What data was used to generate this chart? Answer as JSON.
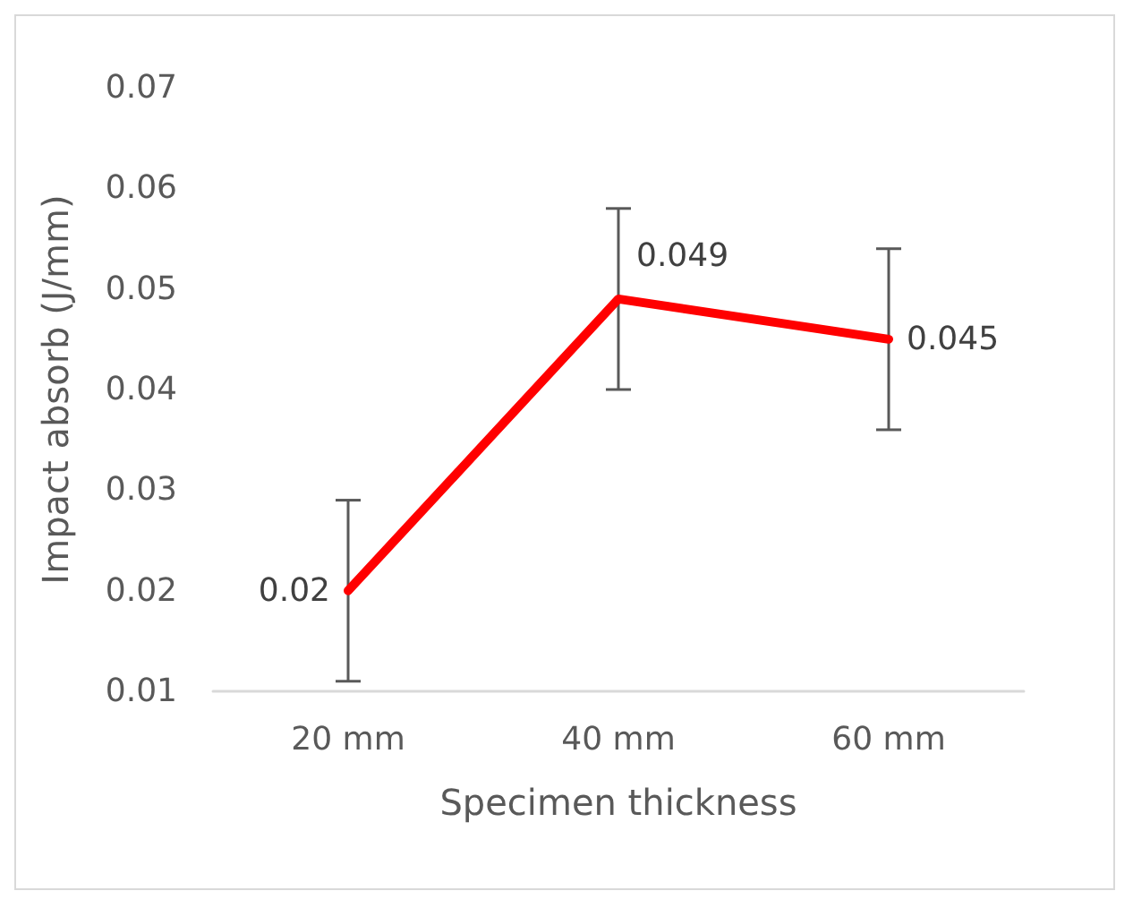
{
  "chart_data": {
    "type": "line",
    "xlabel": "Specimen thickness",
    "ylabel": "Impact absorb (J/mm)",
    "categories": [
      "20 mm",
      "40 mm",
      "60 mm"
    ],
    "series": [
      {
        "color": "#ff0000",
        "values": [
          0.02,
          0.049,
          0.045
        ],
        "errors": [
          0.009,
          0.009,
          0.009
        ]
      }
    ],
    "ylim": [
      0.01,
      0.07
    ],
    "yticks": [
      0.01,
      0.02,
      0.03,
      0.04,
      0.05,
      0.06,
      0.07
    ],
    "data_labels": true,
    "grid": false,
    "marker": "none",
    "line_style": "solid"
  }
}
